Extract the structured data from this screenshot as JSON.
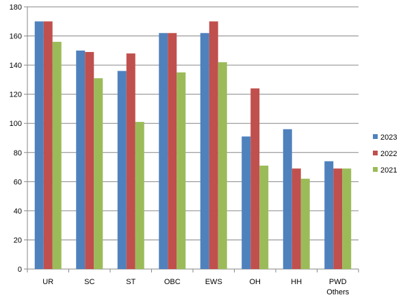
{
  "chart_data": {
    "type": "bar",
    "categories": [
      "UR",
      "SC",
      "ST",
      "OBC",
      "EWS",
      "OH",
      "HH",
      "PWD\nOthers"
    ],
    "series": [
      {
        "name": "2023",
        "color": "#4F81BD",
        "values": [
          170,
          150,
          136,
          162,
          162,
          91,
          96,
          74
        ]
      },
      {
        "name": "2022",
        "color": "#C0504D",
        "values": [
          170,
          149,
          148,
          162,
          170,
          124,
          69,
          69
        ]
      },
      {
        "name": "2021",
        "color": "#9BBB59",
        "values": [
          156,
          131,
          101,
          135,
          142,
          71,
          62,
          69
        ]
      }
    ],
    "ylim": [
      0,
      180
    ],
    "yticks": [
      0,
      20,
      40,
      60,
      80,
      100,
      120,
      140,
      160,
      180
    ],
    "grid": true,
    "legend": "right",
    "title": "",
    "xlabel": "",
    "ylabel": ""
  }
}
